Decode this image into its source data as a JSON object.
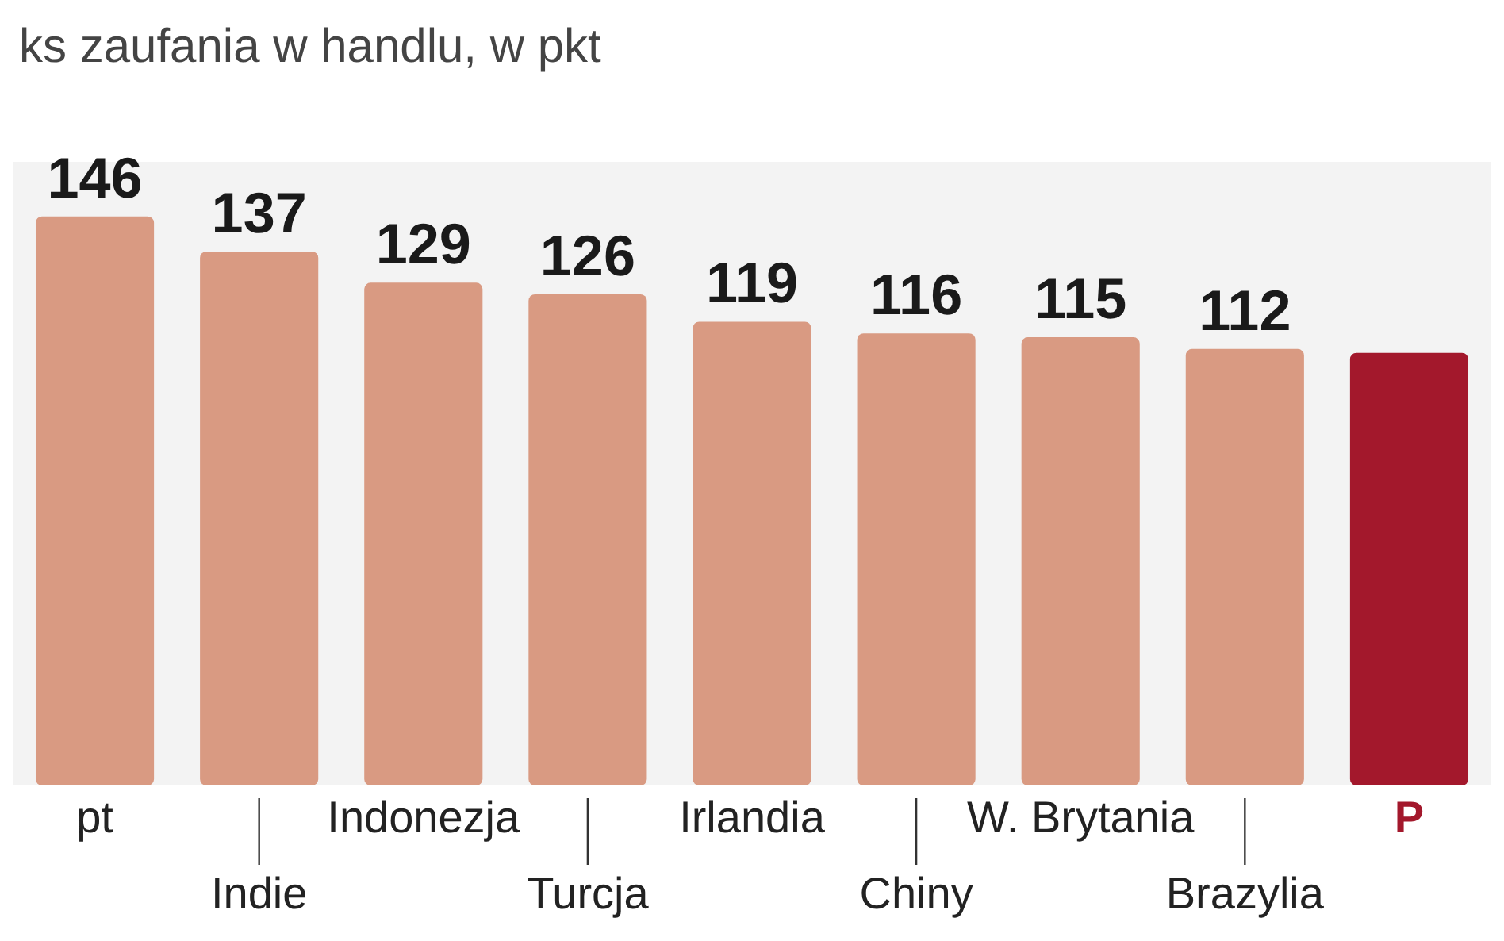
{
  "chart_data": {
    "type": "bar",
    "title": "ks zaufania w handlu, w pkt",
    "categories": [
      "pt",
      "Indie",
      "Indonezja",
      "Turcja",
      "Irlandia",
      "Chiny",
      "W. Brytania",
      "Brazylia",
      "P"
    ],
    "values": [
      146,
      137,
      129,
      126,
      119,
      116,
      115,
      112,
      111
    ],
    "colors": [
      "#d99a82",
      "#d99a82",
      "#d99a82",
      "#d99a82",
      "#d99a82",
      "#d99a82",
      "#d99a82",
      "#d99a82",
      "#a3182c"
    ],
    "value_labels": [
      "146",
      "137",
      "129",
      "126",
      "119",
      "116",
      "115",
      "112",
      null
    ]
  }
}
